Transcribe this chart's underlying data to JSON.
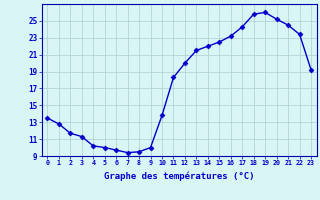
{
  "hours": [
    0,
    1,
    2,
    3,
    4,
    5,
    6,
    7,
    8,
    9,
    10,
    11,
    12,
    13,
    14,
    15,
    16,
    17,
    18,
    19,
    20,
    21,
    22,
    23
  ],
  "temps": [
    13.5,
    12.8,
    11.7,
    11.3,
    10.2,
    10.0,
    9.7,
    9.4,
    9.5,
    10.0,
    13.8,
    18.3,
    20.0,
    21.5,
    22.0,
    22.5,
    23.2,
    24.3,
    25.8,
    26.0,
    25.2,
    24.5,
    23.4,
    19.2
  ],
  "line_color": "#0000cc",
  "marker": "D",
  "marker_size": 2.5,
  "bg_color": "#daf5f5",
  "grid_color": "#aacfcf",
  "xlabel": "Graphe des températures (°C)",
  "ylim": [
    9,
    27
  ],
  "xlim": [
    -0.5,
    23.5
  ],
  "yticks": [
    9,
    11,
    13,
    15,
    17,
    19,
    21,
    23,
    25
  ],
  "xtick_labels": [
    "0",
    "1",
    "2",
    "3",
    "4",
    "5",
    "6",
    "7",
    "8",
    "9",
    "10",
    "11",
    "12",
    "13",
    "14",
    "15",
    "16",
    "17",
    "18",
    "19",
    "20",
    "21",
    "22",
    "23"
  ],
  "tick_color": "#0000cc",
  "label_color": "#0000cc",
  "axis_color": "#0000aa",
  "line_width": 1.0
}
